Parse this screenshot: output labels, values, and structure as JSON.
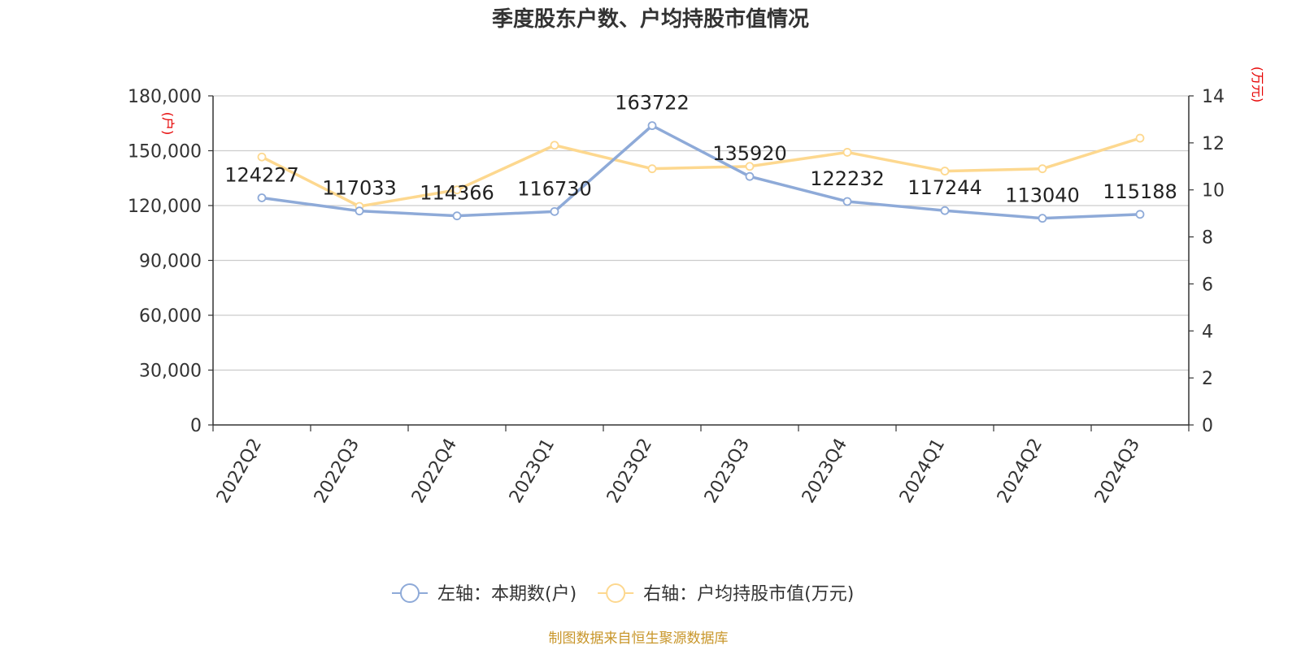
{
  "chart_data": {
    "type": "line",
    "title": "季度股东户数、户均持股市值情况",
    "categories": [
      "2022Q2",
      "2022Q3",
      "2022Q4",
      "2023Q1",
      "2023Q2",
      "2023Q3",
      "2023Q4",
      "2024Q1",
      "2024Q2",
      "2024Q3"
    ],
    "y_left": {
      "unit": "(户)",
      "range": [
        0,
        180000
      ],
      "ticks": [
        "0",
        "30,000",
        "60,000",
        "90,000",
        "120,000",
        "150,000",
        "180,000"
      ]
    },
    "y_right": {
      "unit": "(万元)",
      "range": [
        0,
        14
      ],
      "ticks": [
        "0",
        "2",
        "4",
        "6",
        "8",
        "10",
        "12",
        "14"
      ]
    },
    "grid": true,
    "legend_position": "bottom",
    "series": [
      {
        "name": "左轴：本期数(户)",
        "axis": "left",
        "color": "#8eaad8",
        "values": [
          124227,
          117033,
          114366,
          116730,
          163722,
          135920,
          122232,
          117244,
          113040,
          115188
        ],
        "labels": [
          "124227",
          "117033",
          "114366",
          "116730",
          "163722",
          "135920",
          "122232",
          "117244",
          "113040",
          "115188"
        ]
      },
      {
        "name": "右轴：户均持股市值(万元)",
        "axis": "right",
        "color": "#fdd88f",
        "values": [
          11.4,
          9.3,
          10.0,
          11.9,
          10.9,
          11.0,
          11.6,
          10.8,
          10.9,
          12.2
        ]
      }
    ],
    "source": "制图数据来自恒生聚源数据库"
  }
}
